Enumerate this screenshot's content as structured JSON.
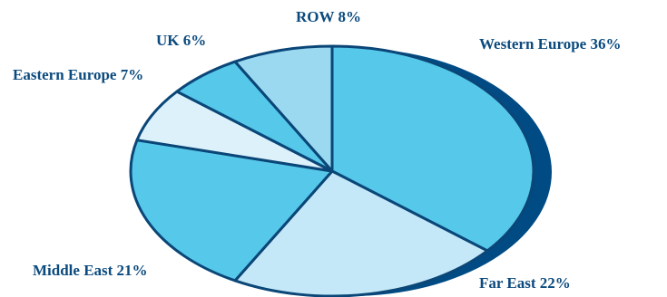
{
  "chart_data": {
    "type": "pie",
    "title": "",
    "legend": "none",
    "slices": [
      {
        "label": "Western Europe 36%",
        "name": "Western Europe",
        "value": 36,
        "color": "#56c8e9"
      },
      {
        "label": "Far East 22%",
        "name": "Far East",
        "value": 22,
        "color": "#c4e8f7"
      },
      {
        "label": "Middle East 21%",
        "name": "Middle East",
        "value": 21,
        "color": "#56c8e9"
      },
      {
        "label": "Eastern Europe 7%",
        "name": "Eastern Europe",
        "value": 7,
        "color": "#dcf1fa"
      },
      {
        "label": "UK 6%",
        "name": "UK",
        "value": 6,
        "color": "#56c8e9"
      },
      {
        "label": "ROW 8%",
        "name": "ROW",
        "value": 8,
        "color": "#9bd9f1"
      }
    ],
    "outline_color": "#0a4677",
    "shadow_color": "#004b84",
    "label_color": "#0b4a7e"
  }
}
